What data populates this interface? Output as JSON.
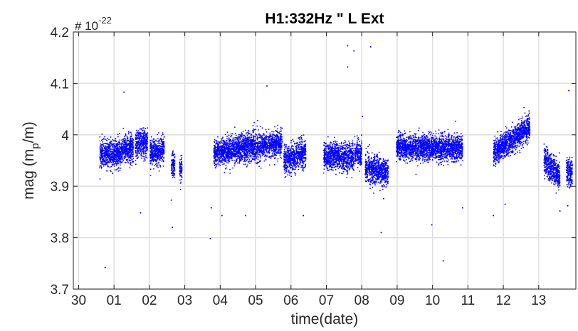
{
  "chart_data": {
    "type": "scatter",
    "title": "H1:332Hz \" L Ext",
    "xlabel": "time(date)",
    "ylabel_main": "mag (m",
    "ylabel_sub": "p",
    "ylabel_tail": "/m)",
    "y_exponent_base": "# 10",
    "y_exponent_power": "-22",
    "ylim": [
      3.7,
      4.2
    ],
    "y_ticks": [
      "3.7",
      "3.8",
      "3.9",
      "4",
      "4.1",
      "4.2"
    ],
    "x_ticks": [
      "30",
      "01",
      "02",
      "03",
      "04",
      "05",
      "06",
      "07",
      "08",
      "09",
      "10",
      "11",
      "12",
      "13"
    ],
    "xlim_days": [
      -0.15,
      14.05
    ],
    "grid": true,
    "marker_color": "#0000ff",
    "clusters": [
      {
        "start": 0.6,
        "end": 1.2,
        "mean_start": 3.96,
        "mean_end": 3.965,
        "spread": 0.022
      },
      {
        "start": 1.2,
        "end": 1.55,
        "mean_start": 3.97,
        "mean_end": 3.975,
        "spread": 0.022
      },
      {
        "start": 1.6,
        "end": 1.95,
        "mean_start": 3.98,
        "mean_end": 3.985,
        "spread": 0.022
      },
      {
        "start": 2.02,
        "end": 2.42,
        "mean_start": 3.965,
        "mean_end": 3.97,
        "spread": 0.022
      },
      {
        "start": 2.62,
        "end": 2.72,
        "mean_start": 3.94,
        "mean_end": 3.94,
        "spread": 0.022
      },
      {
        "start": 2.85,
        "end": 2.92,
        "mean_start": 3.93,
        "mean_end": 3.93,
        "spread": 0.02
      },
      {
        "start": 3.82,
        "end": 5.75,
        "mean_start": 3.965,
        "mean_end": 3.985,
        "spread": 0.022
      },
      {
        "start": 5.8,
        "end": 6.42,
        "mean_start": 3.95,
        "mean_end": 3.965,
        "spread": 0.022
      },
      {
        "start": 6.92,
        "end": 7.78,
        "mean_start": 3.96,
        "mean_end": 3.955,
        "spread": 0.022
      },
      {
        "start": 7.8,
        "end": 8.0,
        "mean_start": 3.965,
        "mean_end": 3.965,
        "spread": 0.022
      },
      {
        "start": 8.1,
        "end": 8.75,
        "mean_start": 3.935,
        "mean_end": 3.925,
        "spread": 0.022
      },
      {
        "start": 8.98,
        "end": 10.85,
        "mean_start": 3.975,
        "mean_end": 3.975,
        "spread": 0.02
      },
      {
        "start": 11.72,
        "end": 12.75,
        "mean_start": 3.965,
        "mean_end": 4.015,
        "spread": 0.02
      },
      {
        "start": 13.15,
        "end": 13.6,
        "mean_start": 3.95,
        "mean_end": 3.92,
        "spread": 0.022
      },
      {
        "start": 13.78,
        "end": 13.95,
        "mean_start": 3.93,
        "mean_end": 3.925,
        "spread": 0.022
      }
    ],
    "outliers": [
      {
        "x": 0.75,
        "y": 3.742
      },
      {
        "x": 1.28,
        "y": 4.083
      },
      {
        "x": 1.75,
        "y": 3.848
      },
      {
        "x": 2.65,
        "y": 3.82
      },
      {
        "x": 2.62,
        "y": 3.873
      },
      {
        "x": 3.72,
        "y": 3.798
      },
      {
        "x": 3.75,
        "y": 3.858
      },
      {
        "x": 4.05,
        "y": 3.843
      },
      {
        "x": 4.72,
        "y": 3.843
      },
      {
        "x": 5.32,
        "y": 4.095
      },
      {
        "x": 6.35,
        "y": 3.843
      },
      {
        "x": 7.6,
        "y": 4.173
      },
      {
        "x": 7.78,
        "y": 4.163
      },
      {
        "x": 7.6,
        "y": 4.132
      },
      {
        "x": 8.25,
        "y": 4.171
      },
      {
        "x": 8.02,
        "y": 4.036
      },
      {
        "x": 8.55,
        "y": 3.81
      },
      {
        "x": 8.62,
        "y": 3.876
      },
      {
        "x": 9.98,
        "y": 3.825
      },
      {
        "x": 10.3,
        "y": 3.755
      },
      {
        "x": 10.85,
        "y": 3.858
      },
      {
        "x": 11.72,
        "y": 3.843
      },
      {
        "x": 12.05,
        "y": 3.865
      },
      {
        "x": 13.6,
        "y": 3.852
      },
      {
        "x": 13.85,
        "y": 4.086
      },
      {
        "x": 13.82,
        "y": 3.862
      }
    ]
  }
}
